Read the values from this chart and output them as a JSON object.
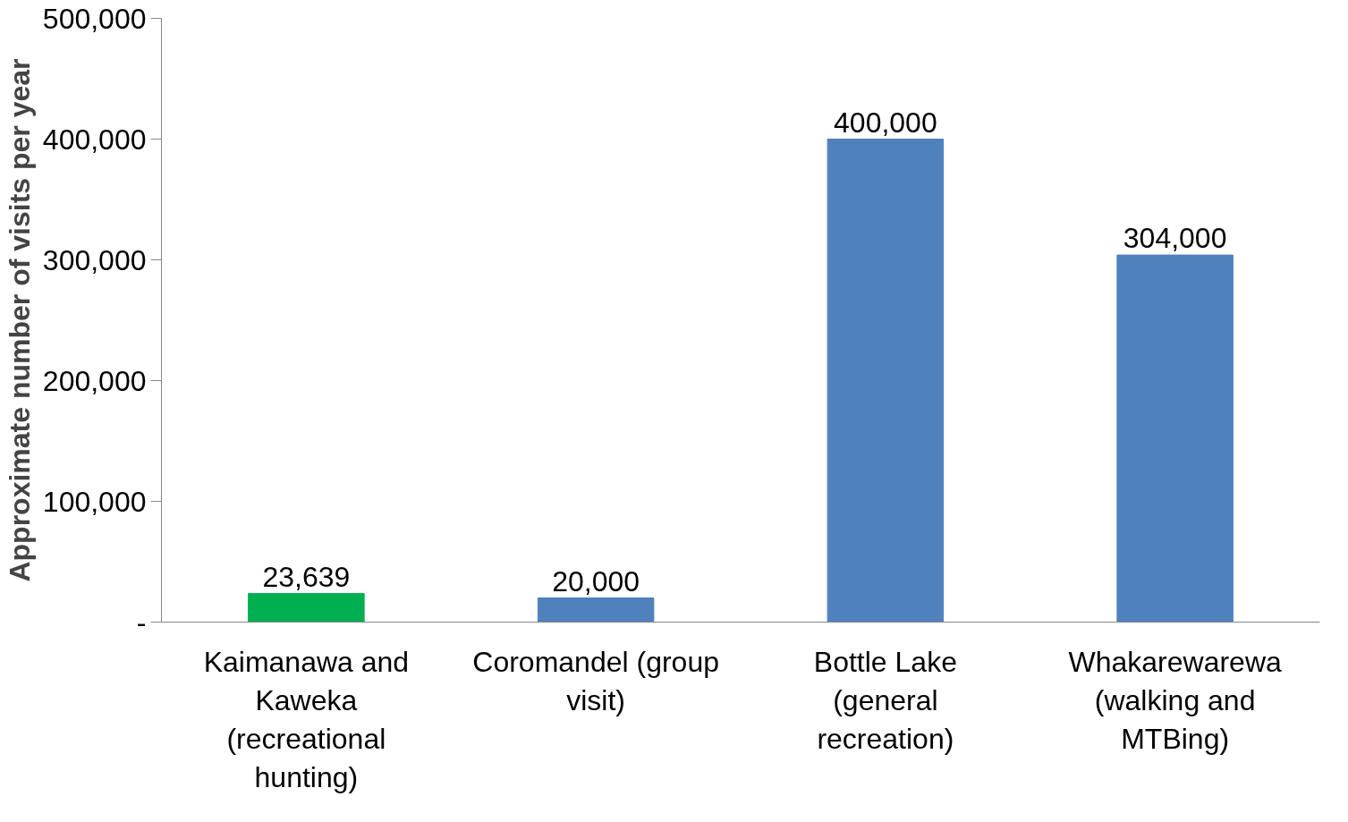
{
  "chart_data": {
    "type": "bar",
    "ylabel": "Approximate number of visits per year",
    "categories": [
      "Kaimanawa and Kaweka (recreational hunting)",
      "Coromandel (group visit)",
      "Bottle Lake (general recreation)",
      "Whakarewarewa (walking and MTBing)"
    ],
    "values": [
      23639,
      20000,
      400000,
      304000
    ],
    "colors": [
      "#00b050",
      "#4f81bd",
      "#4f81bd",
      "#4f81bd"
    ],
    "ylim": [
      0,
      500000
    ],
    "yticks": [
      {
        "value": 0,
        "label": "-"
      },
      {
        "value": 100000,
        "label": "100,000"
      },
      {
        "value": 200000,
        "label": "200,000"
      },
      {
        "value": 300000,
        "label": "300,000"
      },
      {
        "value": 400000,
        "label": "400,000"
      },
      {
        "value": 500000,
        "label": "500,000"
      }
    ],
    "value_labels": [
      "23,639",
      "20,000",
      "400,000",
      "304,000"
    ],
    "grid": false
  }
}
